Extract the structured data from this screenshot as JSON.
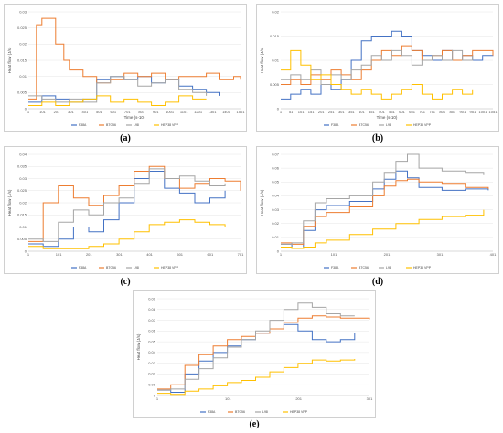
{
  "colors": {
    "s1": "#4472C4",
    "s2": "#ED7D31",
    "s3": "#A5A5A5",
    "s4": "#FFC000"
  },
  "panels": [
    {
      "id": "a",
      "caption": "(a)",
      "ylabel": "Heat flow (J/s)",
      "xlabel": "Time (s-10)",
      "yticks": [
        "0",
        "0.005",
        "0.01",
        "0.015",
        "0.02",
        "0.025",
        "0.03"
      ],
      "xticks": [
        "1",
        "101",
        "201",
        "301",
        "401",
        "501",
        "601",
        "701",
        "801",
        "901",
        "1001",
        "1101",
        "1201",
        "1301",
        "1401",
        "1501"
      ],
      "legend": [
        "F38A",
        "BTC56",
        "L98",
        "HEP38 VPP"
      ]
    },
    {
      "id": "b",
      "caption": "(b)",
      "ylabel": "Heat flow (J/s)",
      "xlabel": "Time (s-10)",
      "yticks": [
        "0",
        "0.005",
        "0.01",
        "0.015",
        "0.02"
      ],
      "xticks": [
        "1",
        "51",
        "101",
        "151",
        "201",
        "251",
        "301",
        "351",
        "401",
        "451",
        "501",
        "551",
        "601",
        "651",
        "701",
        "751",
        "801",
        "851",
        "901",
        "951",
        "1001",
        "1051"
      ],
      "legend": [
        "F38A",
        "BTC56",
        "L98",
        "HEP38 VPP"
      ]
    },
    {
      "id": "c",
      "caption": "(c)",
      "ylabel": "Heat flow (J/s)",
      "xlabel": "",
      "yticks": [
        "0",
        "0.005",
        "0.01",
        "0.015",
        "0.02",
        "0.025",
        "0.03",
        "0.035",
        "0.04"
      ],
      "xticks": [
        "1",
        "101",
        "201",
        "301",
        "401",
        "501",
        "601",
        "701"
      ],
      "legend": [
        "F38A",
        "BTC56",
        "L98",
        "HEP38 VPP"
      ]
    },
    {
      "id": "d",
      "caption": "(d)",
      "ylabel": "Heat flow (J/s)",
      "xlabel": "",
      "yticks": [
        "0",
        "0.01",
        "0.02",
        "0.03",
        "0.04",
        "0.05",
        "0.06",
        "0.07"
      ],
      "xticks": [
        "1",
        "101",
        "201",
        "301",
        "401"
      ],
      "legend": [
        "F38A",
        "BTC56",
        "L98",
        "HEP38 VPP"
      ]
    },
    {
      "id": "e",
      "caption": "(e)",
      "ylabel": "Heat flow (J/s)",
      "xlabel": "",
      "yticks": [
        "0",
        "0.01",
        "0.02",
        "0.03",
        "0.04",
        "0.05",
        "0.06",
        "0.07",
        "0.08",
        "0.09"
      ],
      "xticks": [
        "1",
        "101",
        "201",
        "301"
      ],
      "legend": [
        "F38A",
        "BTC56",
        "L98",
        "HEP38 VPP"
      ]
    }
  ],
  "chart_data": [
    {
      "type": "line",
      "ylim": [
        0,
        0.03
      ],
      "xlim": [
        1,
        1550
      ],
      "series": [
        {
          "name": "F38A",
          "x": [
            1,
            100,
            200,
            300,
            400,
            500,
            600,
            700,
            800,
            900,
            1000,
            1100,
            1200,
            1300,
            1400
          ],
          "y": [
            0.002,
            0.004,
            0.003,
            0.002,
            0.003,
            0.009,
            0.01,
            0.009,
            0.01,
            0.008,
            0.009,
            0.007,
            0.006,
            0.005,
            0.004
          ]
        },
        {
          "name": "BTC56",
          "x": [
            1,
            60,
            100,
            150,
            200,
            260,
            300,
            400,
            500,
            600,
            700,
            800,
            900,
            1000,
            1100,
            1200,
            1300,
            1400,
            1500,
            1550
          ],
          "y": [
            0.003,
            0.026,
            0.028,
            0.028,
            0.02,
            0.015,
            0.012,
            0.01,
            0.008,
            0.009,
            0.011,
            0.01,
            0.011,
            0.009,
            0.01,
            0.01,
            0.011,
            0.009,
            0.01,
            0.009
          ]
        },
        {
          "name": "L98",
          "x": [
            1,
            100,
            200,
            300,
            400,
            500,
            600,
            700,
            800,
            900,
            1000,
            1100,
            1200,
            1300
          ],
          "y": [
            0.004,
            0.003,
            0.002,
            0.003,
            0.002,
            0.008,
            0.01,
            0.009,
            0.007,
            0.008,
            0.009,
            0.006,
            0.005,
            0.004
          ]
        },
        {
          "name": "HEP38 VPP",
          "x": [
            1,
            100,
            200,
            300,
            400,
            500,
            600,
            700,
            800,
            900,
            1000,
            1100,
            1200,
            1300
          ],
          "y": [
            0.001,
            0.002,
            0.001,
            0.002,
            0.003,
            0.004,
            0.002,
            0.003,
            0.002,
            0.001,
            0.002,
            0.004,
            0.003,
            0.003
          ]
        }
      ]
    },
    {
      "type": "line",
      "ylim": [
        0,
        0.02
      ],
      "xlim": [
        1,
        1051
      ],
      "series": [
        {
          "name": "F38A",
          "x": [
            1,
            50,
            100,
            150,
            200,
            250,
            300,
            350,
            400,
            450,
            500,
            550,
            600,
            650,
            700,
            750,
            800,
            850,
            900,
            950,
            1000,
            1051
          ],
          "y": [
            0.002,
            0.003,
            0.004,
            0.003,
            0.005,
            0.004,
            0.006,
            0.01,
            0.014,
            0.015,
            0.015,
            0.016,
            0.015,
            0.012,
            0.011,
            0.01,
            0.012,
            0.01,
            0.011,
            0.01,
            0.011,
            0.012
          ]
        },
        {
          "name": "BTC56",
          "x": [
            1,
            50,
            100,
            150,
            200,
            250,
            300,
            350,
            400,
            450,
            500,
            550,
            600,
            650,
            700,
            750,
            800,
            850,
            900,
            950,
            1000,
            1051
          ],
          "y": [
            0.005,
            0.006,
            0.005,
            0.007,
            0.006,
            0.008,
            0.007,
            0.006,
            0.008,
            0.01,
            0.012,
            0.011,
            0.013,
            0.012,
            0.01,
            0.011,
            0.012,
            0.01,
            0.011,
            0.012,
            0.012,
            0.011
          ]
        },
        {
          "name": "L98",
          "x": [
            1,
            50,
            100,
            150,
            200,
            250,
            300,
            350,
            400,
            450,
            500,
            550,
            600,
            650,
            700,
            750,
            800,
            850,
            900,
            950
          ],
          "y": [
            0.006,
            0.007,
            0.006,
            0.008,
            0.005,
            0.007,
            0.006,
            0.008,
            0.009,
            0.011,
            0.01,
            0.012,
            0.011,
            0.009,
            0.01,
            0.011,
            0.01,
            0.012,
            0.01,
            0.011
          ]
        },
        {
          "name": "HEP38 VPP",
          "x": [
            1,
            50,
            100,
            150,
            200,
            250,
            300,
            350,
            400,
            450,
            500,
            550,
            600,
            650,
            700,
            750,
            800,
            850,
            900,
            950
          ],
          "y": [
            0.008,
            0.012,
            0.009,
            0.006,
            0.007,
            0.005,
            0.004,
            0.003,
            0.004,
            0.003,
            0.002,
            0.003,
            0.004,
            0.005,
            0.003,
            0.002,
            0.003,
            0.004,
            0.003,
            0.004
          ]
        }
      ]
    },
    {
      "type": "line",
      "ylim": [
        0,
        0.04
      ],
      "xlim": [
        1,
        701
      ],
      "series": [
        {
          "name": "F38A",
          "x": [
            1,
            50,
            100,
            150,
            200,
            250,
            300,
            350,
            400,
            450,
            500,
            550,
            600,
            650
          ],
          "y": [
            0.003,
            0.002,
            0.005,
            0.01,
            0.008,
            0.013,
            0.02,
            0.03,
            0.033,
            0.026,
            0.024,
            0.02,
            0.022,
            0.025
          ]
        },
        {
          "name": "BTC56",
          "x": [
            1,
            50,
            100,
            150,
            200,
            250,
            300,
            350,
            400,
            450,
            500,
            550,
            600,
            650,
            701
          ],
          "y": [
            0.004,
            0.02,
            0.027,
            0.022,
            0.019,
            0.023,
            0.027,
            0.033,
            0.035,
            0.03,
            0.026,
            0.028,
            0.03,
            0.029,
            0.025
          ]
        },
        {
          "name": "L98",
          "x": [
            1,
            50,
            100,
            150,
            200,
            250,
            300,
            350,
            400,
            450,
            500,
            550,
            600,
            650
          ],
          "y": [
            0.005,
            0.004,
            0.012,
            0.017,
            0.015,
            0.02,
            0.022,
            0.028,
            0.034,
            0.03,
            0.031,
            0.029,
            0.027,
            0.028
          ]
        },
        {
          "name": "HEP38 VPP",
          "x": [
            1,
            50,
            100,
            150,
            200,
            250,
            300,
            350,
            400,
            450,
            500,
            550,
            600,
            650
          ],
          "y": [
            0.002,
            0.001,
            0.001,
            0.001,
            0.002,
            0.003,
            0.005,
            0.008,
            0.011,
            0.012,
            0.013,
            0.012,
            0.011,
            0.01
          ]
        }
      ]
    },
    {
      "type": "line",
      "ylim": [
        0,
        0.07
      ],
      "xlim": [
        1,
        460
      ],
      "series": [
        {
          "name": "F38A",
          "x": [
            1,
            25,
            50,
            75,
            100,
            150,
            200,
            225,
            250,
            275,
            300,
            350,
            400,
            450
          ],
          "y": [
            0.005,
            0.002,
            0.015,
            0.03,
            0.033,
            0.036,
            0.045,
            0.052,
            0.058,
            0.053,
            0.046,
            0.044,
            0.045,
            0.044
          ]
        },
        {
          "name": "BTC56",
          "x": [
            1,
            25,
            50,
            75,
            100,
            150,
            200,
            225,
            250,
            275,
            300,
            350,
            400,
            450
          ],
          "y": [
            0.006,
            0.005,
            0.018,
            0.025,
            0.028,
            0.032,
            0.04,
            0.047,
            0.051,
            0.052,
            0.05,
            0.049,
            0.046,
            0.045
          ]
        },
        {
          "name": "L98",
          "x": [
            1,
            25,
            50,
            75,
            100,
            150,
            200,
            225,
            250,
            275,
            300,
            350,
            400,
            440
          ],
          "y": [
            0.005,
            0.006,
            0.022,
            0.035,
            0.038,
            0.04,
            0.05,
            0.057,
            0.065,
            0.07,
            0.06,
            0.058,
            0.057,
            0.055
          ]
        },
        {
          "name": "HEP38 VPP",
          "x": [
            1,
            25,
            50,
            75,
            100,
            150,
            200,
            250,
            300,
            350,
            400,
            440
          ],
          "y": [
            0.003,
            0.002,
            0.003,
            0.006,
            0.008,
            0.012,
            0.016,
            0.02,
            0.023,
            0.025,
            0.026,
            0.03
          ]
        }
      ]
    },
    {
      "type": "line",
      "ylim": [
        0,
        0.09
      ],
      "xlim": [
        1,
        301
      ],
      "series": [
        {
          "name": "F38A",
          "x": [
            1,
            20,
            40,
            60,
            80,
            100,
            120,
            140,
            160,
            180,
            200,
            220,
            240,
            260,
            280
          ],
          "y": [
            0.005,
            0.003,
            0.02,
            0.032,
            0.04,
            0.046,
            0.052,
            0.058,
            0.062,
            0.066,
            0.06,
            0.052,
            0.05,
            0.052,
            0.058
          ]
        },
        {
          "name": "BTC56",
          "x": [
            1,
            20,
            40,
            60,
            80,
            100,
            120,
            140,
            160,
            180,
            200,
            220,
            240,
            260,
            280,
            301
          ],
          "y": [
            0.006,
            0.01,
            0.028,
            0.038,
            0.046,
            0.052,
            0.055,
            0.058,
            0.062,
            0.068,
            0.072,
            0.074,
            0.073,
            0.072,
            0.072,
            0.071
          ]
        },
        {
          "name": "L98",
          "x": [
            1,
            20,
            40,
            60,
            80,
            100,
            120,
            140,
            160,
            180,
            200,
            220,
            240,
            260,
            280
          ],
          "y": [
            0.005,
            0.006,
            0.015,
            0.025,
            0.035,
            0.045,
            0.052,
            0.06,
            0.07,
            0.08,
            0.086,
            0.082,
            0.076,
            0.074,
            0.074
          ]
        },
        {
          "name": "HEP38 VPP",
          "x": [
            1,
            20,
            40,
            60,
            80,
            100,
            120,
            140,
            160,
            180,
            200,
            220,
            240,
            260,
            280
          ],
          "y": [
            0.002,
            0.001,
            0.004,
            0.006,
            0.009,
            0.012,
            0.014,
            0.017,
            0.022,
            0.026,
            0.03,
            0.033,
            0.032,
            0.033,
            0.034
          ]
        }
      ]
    }
  ]
}
